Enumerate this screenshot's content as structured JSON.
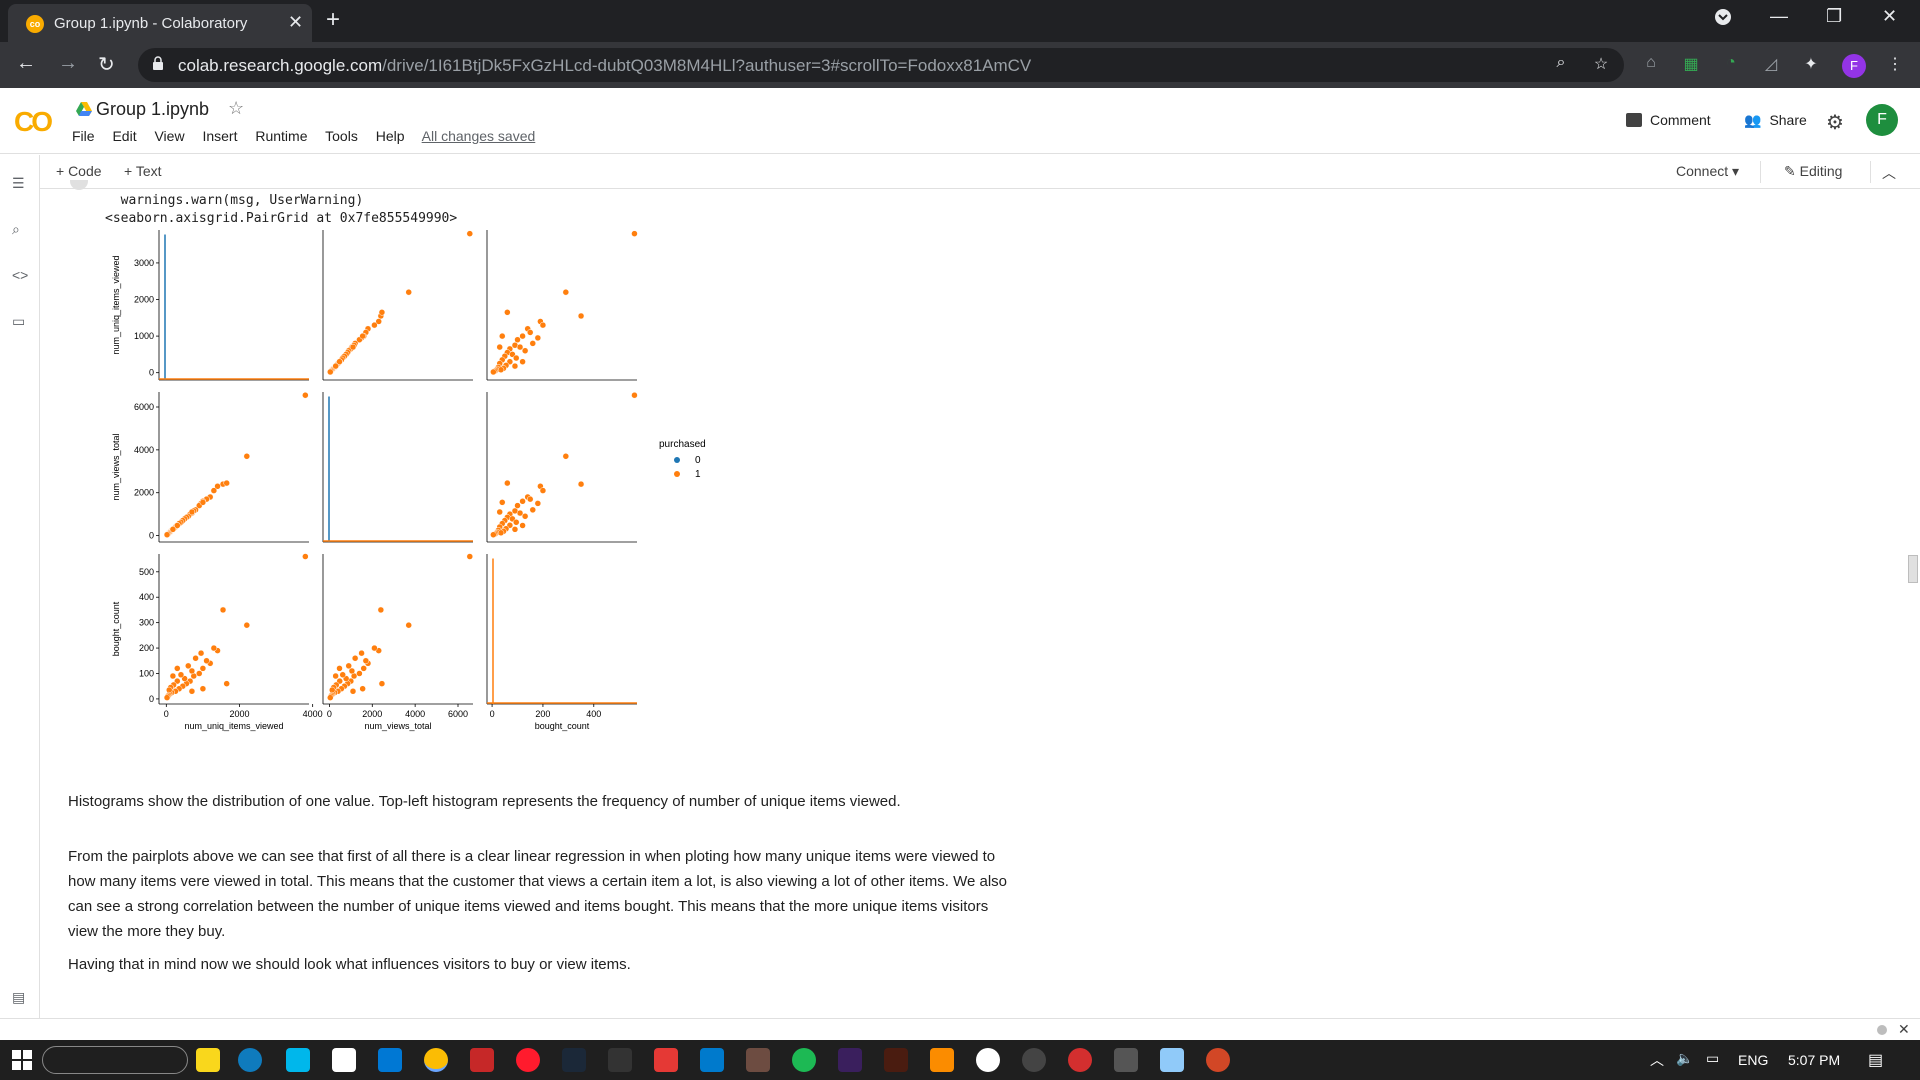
{
  "browser": {
    "tab_title": "Group 1.ipynb - Colaboratory",
    "url_host": "colab.research.google.com",
    "url_path": "/drive/1I61BtjDk5FxGzHLcd-dubtQ03M8M4HLl?authuser=3#scrollTo=Fodoxx81AmCV",
    "profile_initial": "F",
    "colors": {
      "frame": "#202124",
      "toolbar": "#35363a"
    }
  },
  "colab": {
    "notebook_title": "Group 1.ipynb",
    "menu": [
      "File",
      "Edit",
      "View",
      "Insert",
      "Runtime",
      "Tools",
      "Help"
    ],
    "save_status": "All changes saved",
    "comment_label": "Comment",
    "share_label": "Share",
    "user_initial": "F",
    "toolbar": {
      "add_code": "+ Code",
      "add_text": "+ Text",
      "connect": "Connect",
      "editing": "Editing"
    },
    "colors": {
      "logo": "#f9ab00",
      "avatar": "#1e8e3e"
    }
  },
  "output": {
    "warning_line": "  warnings.warn(msg, UserWarning)",
    "repr_line": "<seaborn.axisgrid.PairGrid at 0x7fe855549990>"
  },
  "chart_data": {
    "type": "scatter",
    "variables": [
      "num_uniq_items_viewed",
      "num_views_total",
      "bought_count"
    ],
    "legend_title": "purchased",
    "legend_entries": [
      "0",
      "1"
    ],
    "legend_placement": "right",
    "series_colors": {
      "0": "#1f77b4",
      "1": "#ff7f0e"
    },
    "axis_ticks": {
      "num_uniq_items_viewed": {
        "ticks": [
          0,
          1000,
          2000,
          3000
        ],
        "xticks": [
          0,
          2000,
          4000
        ],
        "lim": [
          -200,
          3900
        ]
      },
      "num_views_total": {
        "ticks": [
          0,
          2000,
          4000,
          6000
        ],
        "xticks": [
          0,
          2000,
          4000,
          6000
        ],
        "lim": [
          -300,
          6700
        ]
      },
      "bought_count": {
        "ticks": [
          0,
          100,
          200,
          300,
          400,
          500
        ],
        "xticks": [
          0,
          200,
          400
        ],
        "lim": [
          -20,
          570
        ]
      }
    },
    "points": [
      [
        3800,
        6550,
        560
      ],
      [
        2200,
        3700,
        290
      ],
      [
        1550,
        2400,
        350
      ],
      [
        1400,
        2300,
        190
      ],
      [
        1300,
        2100,
        200
      ],
      [
        1200,
        1800,
        140
      ],
      [
        1100,
        1700,
        150
      ],
      [
        1000,
        1600,
        120
      ],
      [
        950,
        1500,
        180
      ],
      [
        900,
        1400,
        100
      ],
      [
        800,
        1200,
        160
      ],
      [
        750,
        1150,
        90
      ],
      [
        700,
        1050,
        110
      ],
      [
        650,
        1000,
        70
      ],
      [
        600,
        900,
        130
      ],
      [
        550,
        850,
        60
      ],
      [
        500,
        780,
        80
      ],
      [
        450,
        700,
        50
      ],
      [
        400,
        620,
        95
      ],
      [
        350,
        560,
        40
      ],
      [
        300,
        480,
        70
      ],
      [
        250,
        400,
        30
      ],
      [
        200,
        320,
        55
      ],
      [
        150,
        250,
        25
      ],
      [
        120,
        200,
        45
      ],
      [
        100,
        160,
        20
      ],
      [
        80,
        130,
        35
      ],
      [
        60,
        100,
        15
      ],
      [
        40,
        70,
        10
      ],
      [
        20,
        40,
        5
      ],
      [
        1650,
        2450,
        60
      ],
      [
        1000,
        1550,
        40
      ],
      [
        700,
        1100,
        30
      ],
      [
        300,
        470,
        120
      ],
      [
        180,
        290,
        90
      ]
    ],
    "diag_hist_peak_fraction": 0.97
  },
  "markdown": {
    "p1": "Histograms show the distribution of one value. Top-left histogram represents the frequency of number of unique items viewed.",
    "p2a": "From the pairplots above we can see that first of all there is a clear linear regression in when ploting how many unique items were viewed to",
    "p2b": "how many items vere viewed in total. This means that the customer that views a certain item a lot, is also viewing a lot of other items. We also",
    "p2c": "can see a strong correlation between the number of unique items viewed and items bought. This means that the more unique items visitors",
    "p2d": "view the more they buy.",
    "p3": "Having that in mind now we should look what influences visitors to buy or view items."
  },
  "taskbar": {
    "lang": "ENG",
    "time": "5:07 PM"
  }
}
